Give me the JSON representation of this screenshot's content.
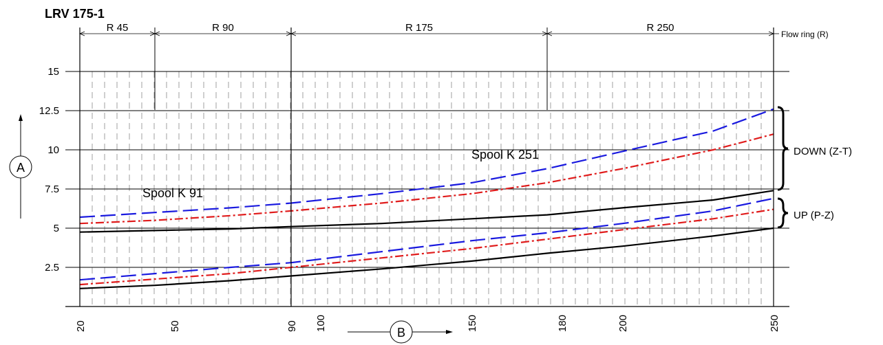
{
  "chart_data": {
    "type": "line",
    "title": "LRV 175-1",
    "x_axis": {
      "label": "B",
      "ticks": [
        "20",
        "50",
        "90",
        "100",
        "150",
        "180",
        "200",
        "250"
      ],
      "range": [
        20,
        250
      ]
    },
    "y_axis": {
      "label": "A",
      "ticks": [
        "2.5",
        "5",
        "7.5",
        "10",
        "12.5",
        "15"
      ],
      "range": [
        0,
        15
      ]
    },
    "flow_ring": {
      "title": "Flow ring (R)",
      "bands": [
        {
          "label": "R 45",
          "from": 20,
          "to": 45
        },
        {
          "label": "R 90",
          "from": 45,
          "to": 90
        },
        {
          "label": "R 175",
          "from": 90,
          "to": 175
        },
        {
          "label": "R 250",
          "from": 175,
          "to": 250
        }
      ]
    },
    "annotations": [
      {
        "text": "Spool K 91"
      },
      {
        "text": "Spool K 251"
      },
      {
        "text": "DOWN (Z-T)"
      },
      {
        "text": "UP (P-Z)"
      }
    ],
    "series": [
      {
        "group": "DOWN (Z-T)",
        "style": "long-dash",
        "color": "#1a1adf",
        "x": [
          20,
          45,
          70,
          90,
          120,
          150,
          175,
          200,
          230,
          250
        ],
        "y": [
          5.7,
          6.0,
          6.3,
          6.6,
          7.2,
          7.9,
          8.8,
          9.9,
          11.2,
          12.6
        ]
      },
      {
        "group": "DOWN (Z-T)",
        "style": "dash-dot",
        "color": "#e01c1c",
        "x": [
          20,
          45,
          70,
          90,
          120,
          150,
          175,
          200,
          230,
          250
        ],
        "y": [
          5.3,
          5.5,
          5.8,
          6.1,
          6.6,
          7.2,
          7.9,
          8.8,
          10.0,
          11.0
        ]
      },
      {
        "group": "DOWN (Z-T)",
        "style": "solid",
        "color": "#000000",
        "x": [
          20,
          45,
          70,
          90,
          120,
          150,
          175,
          200,
          230,
          250
        ],
        "y": [
          4.75,
          4.85,
          4.95,
          5.1,
          5.3,
          5.6,
          5.85,
          6.3,
          6.8,
          7.4
        ]
      },
      {
        "group": "UP (P-Z)",
        "style": "long-dash",
        "color": "#1a1adf",
        "x": [
          20,
          45,
          70,
          90,
          120,
          150,
          175,
          200,
          230,
          250
        ],
        "y": [
          1.7,
          2.1,
          2.5,
          2.8,
          3.5,
          4.2,
          4.7,
          5.3,
          6.1,
          6.9
        ]
      },
      {
        "group": "UP (P-Z)",
        "style": "dash-dot",
        "color": "#e01c1c",
        "x": [
          20,
          45,
          70,
          90,
          120,
          150,
          175,
          200,
          230,
          250
        ],
        "y": [
          1.4,
          1.75,
          2.1,
          2.5,
          3.1,
          3.7,
          4.3,
          4.9,
          5.6,
          6.2
        ]
      },
      {
        "group": "UP (P-Z)",
        "style": "solid",
        "color": "#000000",
        "x": [
          20,
          45,
          70,
          90,
          120,
          150,
          175,
          200,
          230,
          250
        ],
        "y": [
          1.15,
          1.35,
          1.65,
          1.95,
          2.4,
          2.9,
          3.4,
          3.85,
          4.5,
          5.0
        ]
      }
    ],
    "grid": true
  }
}
